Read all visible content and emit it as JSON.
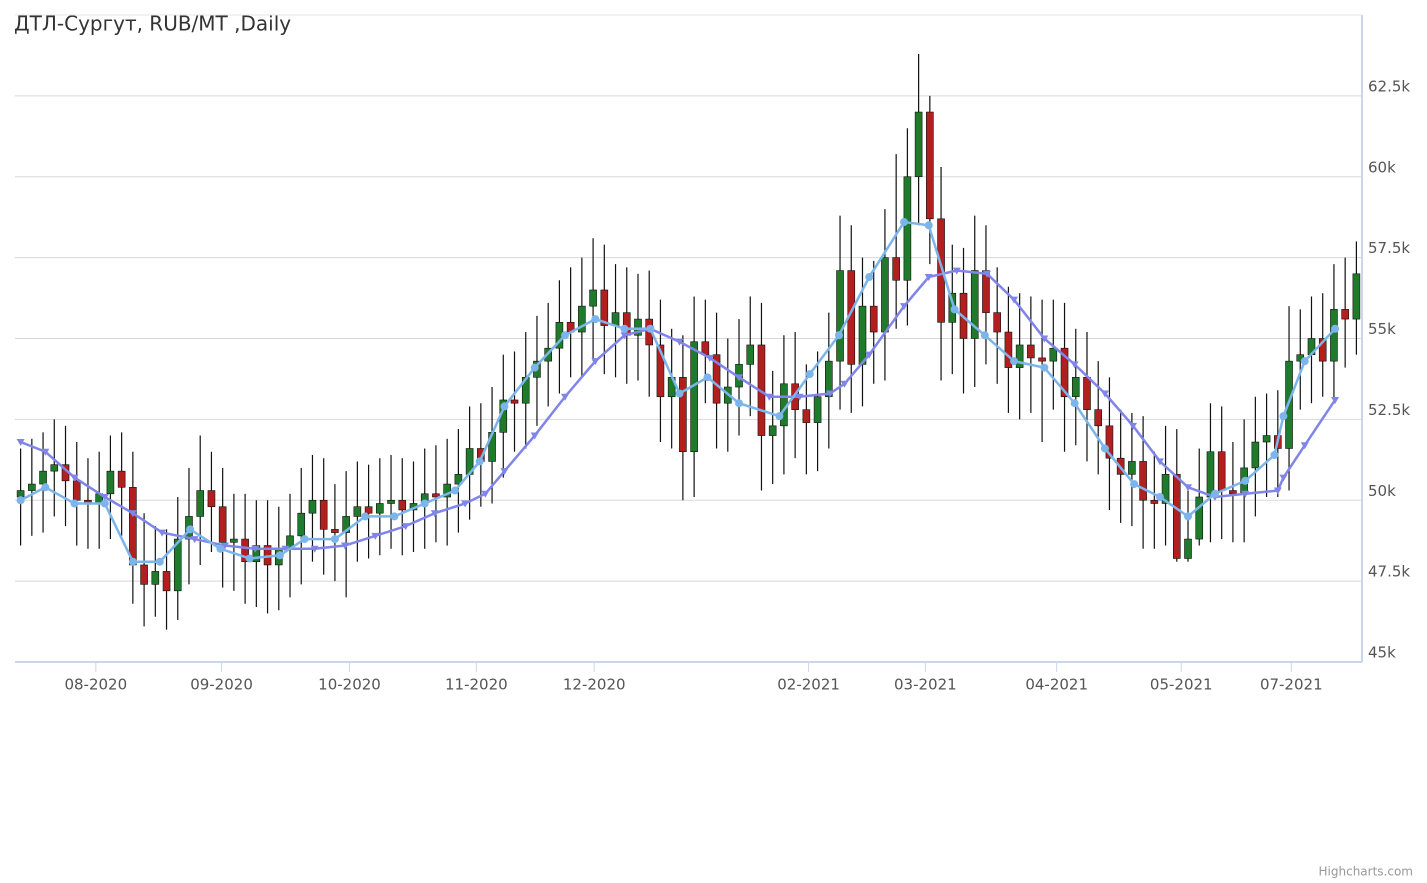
{
  "chart_data": {
    "type": "candlestick",
    "title": "ДТЛ-Сургут, RUB/MT ,Daily",
    "credit": "Highcharts.com",
    "xlim": [
      -0.5,
      119.5
    ],
    "xticks": [
      {
        "value": 6.7,
        "label": "08-2020"
      },
      {
        "value": 17.9,
        "label": "09-2020"
      },
      {
        "value": 29.3,
        "label": "10-2020"
      },
      {
        "value": 40.6,
        "label": "11-2020"
      },
      {
        "value": 51.1,
        "label": "12-2020"
      },
      {
        "value": 70.2,
        "label": "02-2021"
      },
      {
        "value": 80.6,
        "label": "03-2021"
      },
      {
        "value": 92.3,
        "label": "04-2021"
      },
      {
        "value": 103.4,
        "label": "05-2021"
      },
      {
        "value": 113.2,
        "label": "07-2021"
      }
    ],
    "ylim": [
      45000,
      65000
    ],
    "yticks": [
      {
        "value": 45000,
        "label": "45k"
      },
      {
        "value": 47500,
        "label": "47.5k"
      },
      {
        "value": 50000,
        "label": "50k"
      },
      {
        "value": 52500,
        "label": "52.5k"
      },
      {
        "value": 55000,
        "label": "55k"
      },
      {
        "value": 57500,
        "label": "57.5k"
      },
      {
        "value": 60000,
        "label": "60k"
      },
      {
        "value": 62500,
        "label": "62.5k"
      }
    ],
    "grid": true,
    "series": [
      {
        "type": "candlestick",
        "up_color": "#1f7a2c",
        "down_color": "#b21f1f",
        "wick_color": "#111111",
        "open": [
          50100,
          50300,
          50500,
          50900,
          51100,
          50600,
          50000,
          49900,
          50200,
          50900,
          50400,
          48000,
          47400,
          47800,
          47200,
          48800,
          49500,
          50300,
          49800,
          48700,
          48800,
          48100,
          48600,
          48000,
          48500,
          48900,
          49600,
          50000,
          49100,
          49000,
          49500,
          49800,
          49600,
          49900,
          50000,
          49700,
          49900,
          50200,
          50100,
          50500,
          50800,
          51600,
          51200,
          52100,
          53100,
          53000,
          53800,
          54300,
          54700,
          55500,
          55200,
          56000,
          56500,
          55400,
          55800,
          55100,
          55600,
          54800,
          53200,
          53800,
          51500,
          54900,
          54500,
          53000,
          53500,
          54200,
          54800,
          52000,
          52300,
          53600,
          52800,
          52400,
          53200,
          54300,
          57100,
          54200,
          56000,
          55200,
          57500,
          56800,
          60000,
          62000,
          58700,
          55500,
          56400,
          55000,
          57100,
          55800,
          55200,
          54100,
          54800,
          54400,
          54300,
          54700,
          53200,
          53800,
          52800,
          52300,
          51300,
          50800,
          51200,
          50000,
          49900,
          50800,
          48200,
          48800,
          50100,
          51500,
          50300,
          50200,
          51000,
          51800,
          52000,
          51600,
          54300,
          54500,
          55000,
          54300,
          55900,
          55600
        ],
        "high": [
          51600,
          51900,
          52100,
          52500,
          52300,
          51800,
          51300,
          51500,
          52000,
          52100,
          51500,
          49600,
          49200,
          49100,
          50100,
          51000,
          52000,
          51500,
          51000,
          50200,
          50200,
          50000,
          50000,
          49800,
          50200,
          51000,
          51400,
          51300,
          50500,
          50900,
          51200,
          51100,
          51300,
          51400,
          51300,
          51200,
          51600,
          51700,
          51900,
          52200,
          52900,
          53000,
          53500,
          54500,
          54600,
          55200,
          55700,
          56100,
          56800,
          57200,
          57500,
          58100,
          57900,
          57300,
          57200,
          57000,
          57100,
          56200,
          55300,
          55100,
          56300,
          56200,
          55800,
          55000,
          55600,
          56300,
          56100,
          54000,
          55100,
          55200,
          54200,
          54600,
          55800,
          58800,
          58500,
          57500,
          57400,
          59000,
          60700,
          61500,
          63800,
          62500,
          60300,
          57900,
          57800,
          58800,
          58500,
          57200,
          56600,
          56400,
          56300,
          56200,
          56200,
          56100,
          55300,
          55200,
          54300,
          53800,
          52800,
          52700,
          52600,
          51500,
          52300,
          52200,
          50300,
          51600,
          53000,
          52900,
          51800,
          52500,
          53200,
          53300,
          53400,
          56000,
          55900,
          56300,
          56400,
          57300,
          57500,
          58000
        ],
        "low": [
          48600,
          48900,
          49000,
          49500,
          49200,
          48600,
          48500,
          48500,
          48800,
          48900,
          46800,
          46100,
          46400,
          46000,
          46300,
          47400,
          48000,
          48400,
          47300,
          47200,
          46800,
          46700,
          46500,
          46600,
          47000,
          47400,
          48100,
          47700,
          47500,
          47000,
          48100,
          48200,
          48300,
          48500,
          48300,
          48400,
          48500,
          48700,
          48600,
          49000,
          49400,
          49800,
          49900,
          50700,
          51500,
          51600,
          52300,
          52900,
          53300,
          53800,
          53800,
          54300,
          53900,
          53800,
          53600,
          53700,
          53200,
          51800,
          51600,
          50000,
          50100,
          53000,
          51600,
          51500,
          52000,
          52600,
          50300,
          50500,
          50800,
          51300,
          50800,
          50900,
          51600,
          52800,
          52700,
          52900,
          53600,
          53700,
          55300,
          55400,
          58500,
          57300,
          53700,
          53900,
          53300,
          53500,
          54200,
          53600,
          52700,
          52500,
          52700,
          51800,
          52800,
          51500,
          51700,
          51200,
          50800,
          49700,
          49300,
          49200,
          48500,
          48500,
          48600,
          48100,
          48100,
          48600,
          48700,
          48800,
          48700,
          48700,
          49500,
          50100,
          50100,
          50300,
          52800,
          53000,
          53200,
          53000,
          54100,
          54500
        ],
        "close": [
          50300,
          50500,
          50900,
          51100,
          50600,
          50000,
          49900,
          50200,
          50900,
          50400,
          48000,
          47400,
          47800,
          47200,
          48800,
          49500,
          50300,
          49800,
          48700,
          48800,
          48100,
          48600,
          48000,
          48500,
          48900,
          49600,
          50000,
          49100,
          49000,
          49500,
          49800,
          49600,
          49900,
          50000,
          49700,
          49900,
          50200,
          50100,
          50500,
          50800,
          51600,
          51200,
          52100,
          53100,
          53000,
          53800,
          54300,
          54700,
          55500,
          55200,
          56000,
          56500,
          55400,
          55800,
          55100,
          55600,
          54800,
          53200,
          53800,
          51500,
          54900,
          54500,
          53000,
          53500,
          54200,
          54800,
          52000,
          52300,
          53600,
          52800,
          52400,
          53200,
          54300,
          57100,
          54200,
          56000,
          55200,
          57500,
          56800,
          60000,
          62000,
          58700,
          55500,
          56400,
          55000,
          57100,
          55800,
          55200,
          54100,
          54800,
          54400,
          54300,
          54700,
          53200,
          53800,
          52800,
          52300,
          51300,
          50800,
          51200,
          50000,
          49900,
          50800,
          48200,
          48800,
          50100,
          51500,
          50300,
          50200,
          51000,
          51800,
          52000,
          51600,
          54300,
          54500,
          55000,
          54300,
          55900,
          55600,
          57000
        ]
      },
      {
        "type": "line",
        "color": "#8085e9",
        "marker": "triangle",
        "x": [
          0,
          2.2,
          4.8,
          7.5,
          10.0,
          12.6,
          15.5,
          18.2,
          20.9,
          23.6,
          26.2,
          28.9,
          31.6,
          34.3,
          36.9,
          39.6,
          41.4,
          43.1,
          45.8,
          48.5,
          51.2,
          53.8,
          56.1,
          58.7,
          61.4,
          64.0,
          66.7,
          69.4,
          72.1,
          73.4,
          75.6,
          78.7,
          80.9,
          83.4,
          86.1,
          88.5,
          91.2,
          93.9,
          96.6,
          99.1,
          101.5,
          104.0,
          106.4,
          109.1,
          112.0,
          112.5,
          114.4,
          117.1
        ],
        "values": [
          51800,
          51500,
          50700,
          50100,
          49600,
          49000,
          48800,
          48600,
          48500,
          48500,
          48500,
          48600,
          48900,
          49200,
          49600,
          49900,
          50200,
          50900,
          52000,
          53200,
          54300,
          55100,
          55300,
          54900,
          54400,
          53800,
          53200,
          53200,
          53300,
          53600,
          54500,
          56000,
          56900,
          57100,
          57000,
          56200,
          55000,
          54200,
          53300,
          52300,
          51200,
          50400,
          50100,
          50200,
          50300,
          50700,
          51700,
          53100
        ]
      },
      {
        "type": "line",
        "color": "#7cb5ec",
        "marker": "circle",
        "x": [
          0,
          2.2,
          4.8,
          7.5,
          10.0,
          12.4,
          15.1,
          17.8,
          20.4,
          23.1,
          25.3,
          28.0,
          30.7,
          33.3,
          36.0,
          38.7,
          40.9,
          43.1,
          45.8,
          48.5,
          51.2,
          53.8,
          56.1,
          58.7,
          61.2,
          64.0,
          67.6,
          70.3,
          72.9,
          75.6,
          78.7,
          80.9,
          83.2,
          85.9,
          88.5,
          91.2,
          93.9,
          96.6,
          99.2,
          101.5,
          104.0,
          106.4,
          109.1,
          111.7,
          112.5,
          114.4,
          117.1
        ],
        "values": [
          50000,
          50400,
          49900,
          49900,
          48100,
          48100,
          49100,
          48500,
          48200,
          48300,
          48800,
          48800,
          49500,
          49500,
          49900,
          50300,
          51200,
          52900,
          54100,
          55100,
          55600,
          55300,
          55300,
          53300,
          53800,
          53000,
          52600,
          53900,
          55100,
          56900,
          58600,
          58500,
          55900,
          55100,
          54300,
          54100,
          53000,
          51600,
          50500,
          50100,
          49500,
          50200,
          50600,
          51400,
          52600,
          54300,
          55300
        ]
      }
    ]
  }
}
